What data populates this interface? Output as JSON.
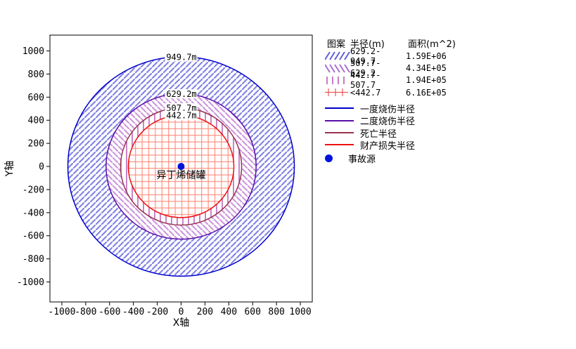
{
  "chart_data": {
    "type": "hazard-ring-map",
    "title": "",
    "xlabel": "X轴",
    "ylabel": "Y轴",
    "xlim": [
      -1100,
      1100
    ],
    "ylim": [
      -1173,
      1137
    ],
    "x_ticks": [
      "-1000",
      "-800",
      "-600",
      "-400",
      "-200",
      "0",
      "200",
      "400",
      "600",
      "800",
      "1000"
    ],
    "y_ticks": [
      "1000",
      "800",
      "600",
      "400",
      "200",
      "0",
      "-200",
      "-400",
      "-600",
      "-800",
      "-1000"
    ],
    "grid": false,
    "center": {
      "x": 0,
      "y": 0,
      "label": "异丁烯储罐",
      "marker_color": "#0011dd"
    },
    "circles": [
      {
        "radius": 949.7,
        "label": "949.7m",
        "stroke": "#0000cc",
        "meaning": "一度烧伤半径"
      },
      {
        "radius": 629.2,
        "label": "629.2m",
        "stroke": "#5a0ca8",
        "meaning": "二度烧伤半径"
      },
      {
        "radius": 507.7,
        "label": "507.7m",
        "stroke": "#993350",
        "meaning": "死亡半径"
      },
      {
        "radius": 442.7,
        "label": "442.7m",
        "stroke": "#ee1111",
        "meaning": "财产损失半径"
      }
    ],
    "rings": [
      {
        "range": "629.2-949.7",
        "area_m2": "1.59E+06",
        "hatch": "diagonal-forward",
        "color": "#8585e4"
      },
      {
        "range": "507.7-629.2",
        "area_m2": "4.34E+05",
        "hatch": "diagonal-backward",
        "color": "#cc99dd"
      },
      {
        "range": "442.7-507.7",
        "area_m2": "1.94E+05",
        "hatch": "vertical",
        "color": "#b052b0"
      },
      {
        "range": "<442.7",
        "area_m2": "6.16E+05",
        "hatch": "cross",
        "color": "#ff8878"
      }
    ]
  },
  "legend": {
    "header": {
      "pattern": "图案",
      "radius": "半径(m)",
      "area": "面积(m^2)"
    },
    "pattern_rows": [
      {
        "hatch": "diagonal-forward",
        "color": "#5f5fd8",
        "radius": "629.2-949.7",
        "area": "1.59E+06"
      },
      {
        "hatch": "diagonal-backward",
        "color": "#a86fd0",
        "radius": "507.7-629.2",
        "area": "4.34E+05"
      },
      {
        "hatch": "vertical",
        "color": "#b052b0",
        "radius": "442.7-507.7",
        "area": "1.94E+05"
      },
      {
        "hatch": "cross",
        "color": "#f05555",
        "radius": "<442.7",
        "area": "6.16E+05"
      }
    ],
    "line_rows": [
      {
        "label": "一度烧伤半径",
        "color": "#0000cc"
      },
      {
        "label": "二度烧伤半径",
        "color": "#5a0ca8"
      },
      {
        "label": "死亡半径",
        "color": "#993350"
      },
      {
        "label": "财产损失半径",
        "color": "#ee1111"
      }
    ],
    "source_row": {
      "label": "事故源",
      "color": "#0011dd"
    }
  }
}
